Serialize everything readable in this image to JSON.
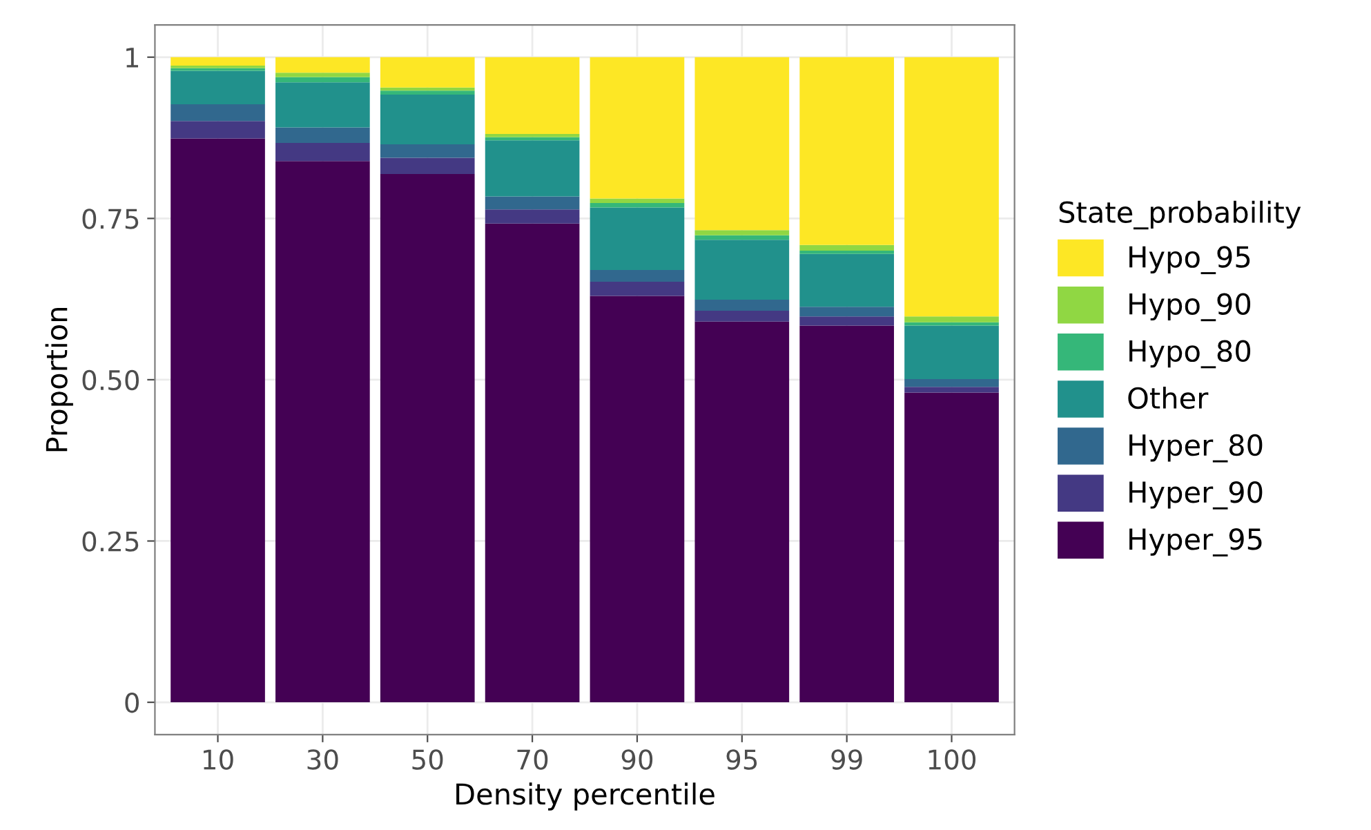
{
  "chart_data": {
    "type": "bar",
    "stacked": true,
    "xlabel": "Density percentile",
    "ylabel": "Proportion",
    "legend_title": "State_probability",
    "legend": "right",
    "grid": true,
    "categories": [
      "10",
      "30",
      "50",
      "70",
      "90",
      "95",
      "99",
      "100"
    ],
    "ylim": [
      -0.05,
      1.05
    ],
    "yticks": [
      {
        "value": 0,
        "label": "0"
      },
      0.25,
      {
        "value": 0.5,
        "label": "0.50"
      },
      0.75,
      {
        "value": 1,
        "label": "1"
      }
    ],
    "series": [
      {
        "name": "Hyper_95",
        "color": "#440154",
        "values": [
          0.874,
          0.839,
          0.819,
          0.742,
          0.63,
          0.59,
          0.584,
          0.48
        ]
      },
      {
        "name": "Hyper_90",
        "color": "#443983",
        "values": [
          0.027,
          0.028,
          0.025,
          0.022,
          0.022,
          0.017,
          0.014,
          0.009
        ]
      },
      {
        "name": "Hyper_80",
        "color": "#31688e",
        "values": [
          0.026,
          0.024,
          0.021,
          0.02,
          0.018,
          0.017,
          0.015,
          0.012
        ]
      },
      {
        "name": "Other",
        "color": "#21918c",
        "values": [
          0.052,
          0.07,
          0.077,
          0.087,
          0.097,
          0.093,
          0.082,
          0.083
        ]
      },
      {
        "name": "Hypo_80",
        "color": "#35b779",
        "values": [
          0.004,
          0.008,
          0.006,
          0.005,
          0.007,
          0.007,
          0.005,
          0.005
        ]
      },
      {
        "name": "Hypo_90",
        "color": "#90d743",
        "values": [
          0.004,
          0.007,
          0.005,
          0.005,
          0.007,
          0.008,
          0.009,
          0.009
        ]
      },
      {
        "name": "Hypo_95",
        "color": "#fde725",
        "values": [
          0.013,
          0.024,
          0.047,
          0.119,
          0.219,
          0.268,
          0.291,
          0.402
        ]
      }
    ]
  }
}
